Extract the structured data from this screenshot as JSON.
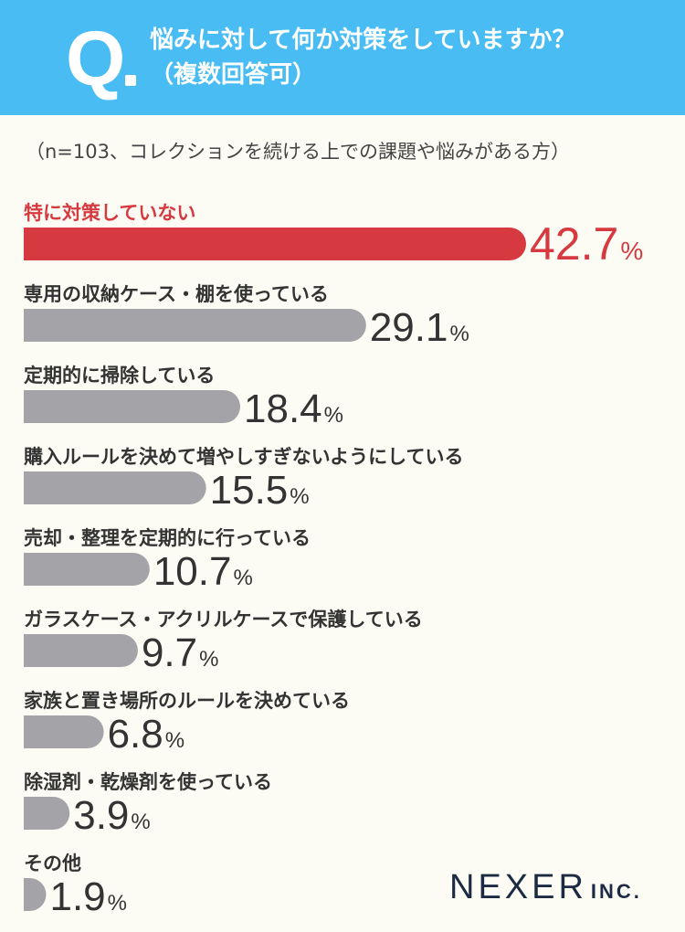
{
  "header": {
    "q_label": "Q",
    "question_line1": "悩みに対して何か対策をしていますか？",
    "question_line2": "（複数回答可）"
  },
  "subtitle": "（n=103、コレクションを続ける上での課題や悩みがある方）",
  "colors": {
    "header_bg": "#49bcf3",
    "highlight": "#d63a40",
    "bar": "#a3a3a8",
    "text": "#333333",
    "background": "#fdfcf4"
  },
  "chart_data": {
    "type": "bar",
    "orientation": "horizontal",
    "unit": "%",
    "highlight_index": 0,
    "categories": [
      "特に対策していない",
      "専用の収納ケース・棚を使っている",
      "定期的に掃除している",
      "購入ルールを決めて増やしすぎないようにしている",
      "売却・整理を定期的に行っている",
      "ガラスケース・アクリルケースで保護している",
      "家族と置き場所のルールを決めている",
      "除湿剤・乾燥剤を使っている",
      "その他"
    ],
    "values": [
      42.7,
      29.1,
      18.4,
      15.5,
      10.7,
      9.7,
      6.8,
      3.9,
      1.9
    ],
    "labels": [
      "42.7",
      "29.1",
      "18.4",
      "15.5",
      "10.7",
      "9.7",
      "6.8",
      "3.9",
      "1.9"
    ],
    "xlim": [
      0,
      42.7
    ],
    "grid": false,
    "legend": "none"
  },
  "logo": {
    "main": "NEXER",
    "sub": "INC."
  }
}
